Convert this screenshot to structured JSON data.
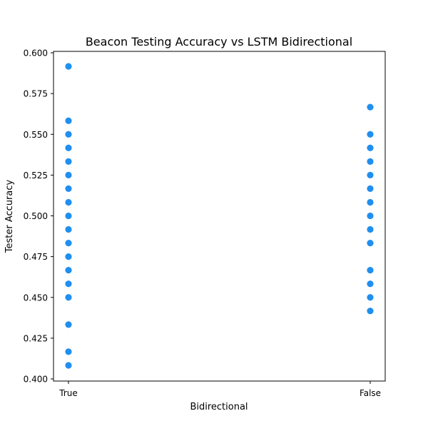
{
  "chart_data": {
    "type": "scatter",
    "title": "Beacon Testing Accuracy vs LSTM Bidirectional",
    "xlabel": "Bidirectional",
    "ylabel": "Tester Accuracy",
    "x_categories": [
      "True",
      "False"
    ],
    "ylim": [
      0.4,
      0.6
    ],
    "yticks": [
      "0.400",
      "0.425",
      "0.450",
      "0.475",
      "0.500",
      "0.525",
      "0.550",
      "0.575",
      "0.600"
    ],
    "grid": false,
    "legend": "none",
    "marker_color": "#1f8ff0",
    "points": [
      {
        "x": "True",
        "y": 0.5917
      },
      {
        "x": "True",
        "y": 0.5583
      },
      {
        "x": "True",
        "y": 0.55
      },
      {
        "x": "True",
        "y": 0.5417
      },
      {
        "x": "True",
        "y": 0.5333
      },
      {
        "x": "True",
        "y": 0.525
      },
      {
        "x": "True",
        "y": 0.5167
      },
      {
        "x": "True",
        "y": 0.5083
      },
      {
        "x": "True",
        "y": 0.5
      },
      {
        "x": "True",
        "y": 0.4917
      },
      {
        "x": "True",
        "y": 0.4833
      },
      {
        "x": "True",
        "y": 0.475
      },
      {
        "x": "True",
        "y": 0.4667
      },
      {
        "x": "True",
        "y": 0.4583
      },
      {
        "x": "True",
        "y": 0.45
      },
      {
        "x": "True",
        "y": 0.4333
      },
      {
        "x": "True",
        "y": 0.4167
      },
      {
        "x": "True",
        "y": 0.4083
      },
      {
        "x": "False",
        "y": 0.5667
      },
      {
        "x": "False",
        "y": 0.55
      },
      {
        "x": "False",
        "y": 0.5417
      },
      {
        "x": "False",
        "y": 0.5333
      },
      {
        "x": "False",
        "y": 0.525
      },
      {
        "x": "False",
        "y": 0.5167
      },
      {
        "x": "False",
        "y": 0.5083
      },
      {
        "x": "False",
        "y": 0.5
      },
      {
        "x": "False",
        "y": 0.4917
      },
      {
        "x": "False",
        "y": 0.4833
      },
      {
        "x": "False",
        "y": 0.4667
      },
      {
        "x": "False",
        "y": 0.4583
      },
      {
        "x": "False",
        "y": 0.45
      },
      {
        "x": "False",
        "y": 0.4417
      }
    ]
  }
}
